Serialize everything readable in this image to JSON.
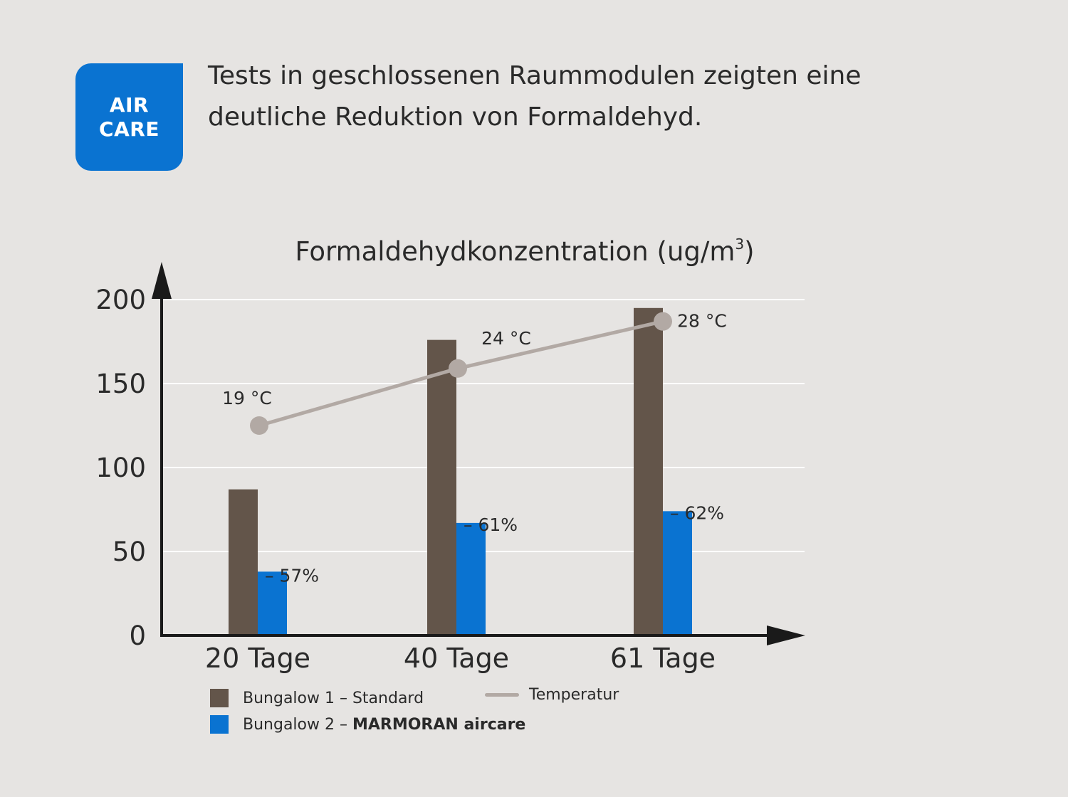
{
  "badge": {
    "line1": "AIR",
    "line2": "CARE"
  },
  "intro": {
    "line1": "Tests in geschlossenen Raummodulen zeigten eine",
    "line2": "deutliche Reduktion von Formaldehyd."
  },
  "colors": {
    "background": "#e6e4e2",
    "standard": "#63554a",
    "aircare": "#0a73d1",
    "temperature": "#b2a9a4",
    "axis": "#1a1a1a",
    "grid": "#ffffff"
  },
  "chart_data": {
    "type": "bar",
    "title": "Formaldehydkonzentration (ug/m",
    "title_superscript": "3",
    "title_close": ")",
    "ylim": [
      0,
      200
    ],
    "yticks": [
      "0",
      "50",
      "100",
      "150",
      "200"
    ],
    "categories": [
      "20 Tage",
      "40 Tage",
      "61 Tage"
    ],
    "series": [
      {
        "name": "Bungalow 1 – Standard",
        "values": [
          87,
          176,
          195
        ]
      },
      {
        "name": "Bungalow 2 – MARMORAN aircare",
        "values": [
          38,
          67,
          74
        ]
      }
    ],
    "reduction_labels": [
      "– 57%",
      "– 61%",
      "– 62%"
    ],
    "temperature": {
      "name": "Temperatur",
      "labels": [
        "19 °C",
        "24 °C",
        "28 °C"
      ],
      "plot_values": [
        125,
        159,
        187
      ]
    },
    "grid": true,
    "legend_position": "bottom-left"
  },
  "legend": {
    "standard_label": "Bungalow 1 – Standard",
    "aircare_prefix": "Bungalow 2 – ",
    "aircare_brand": "MARMORAN aircare",
    "temperature_label": "Temperatur"
  }
}
